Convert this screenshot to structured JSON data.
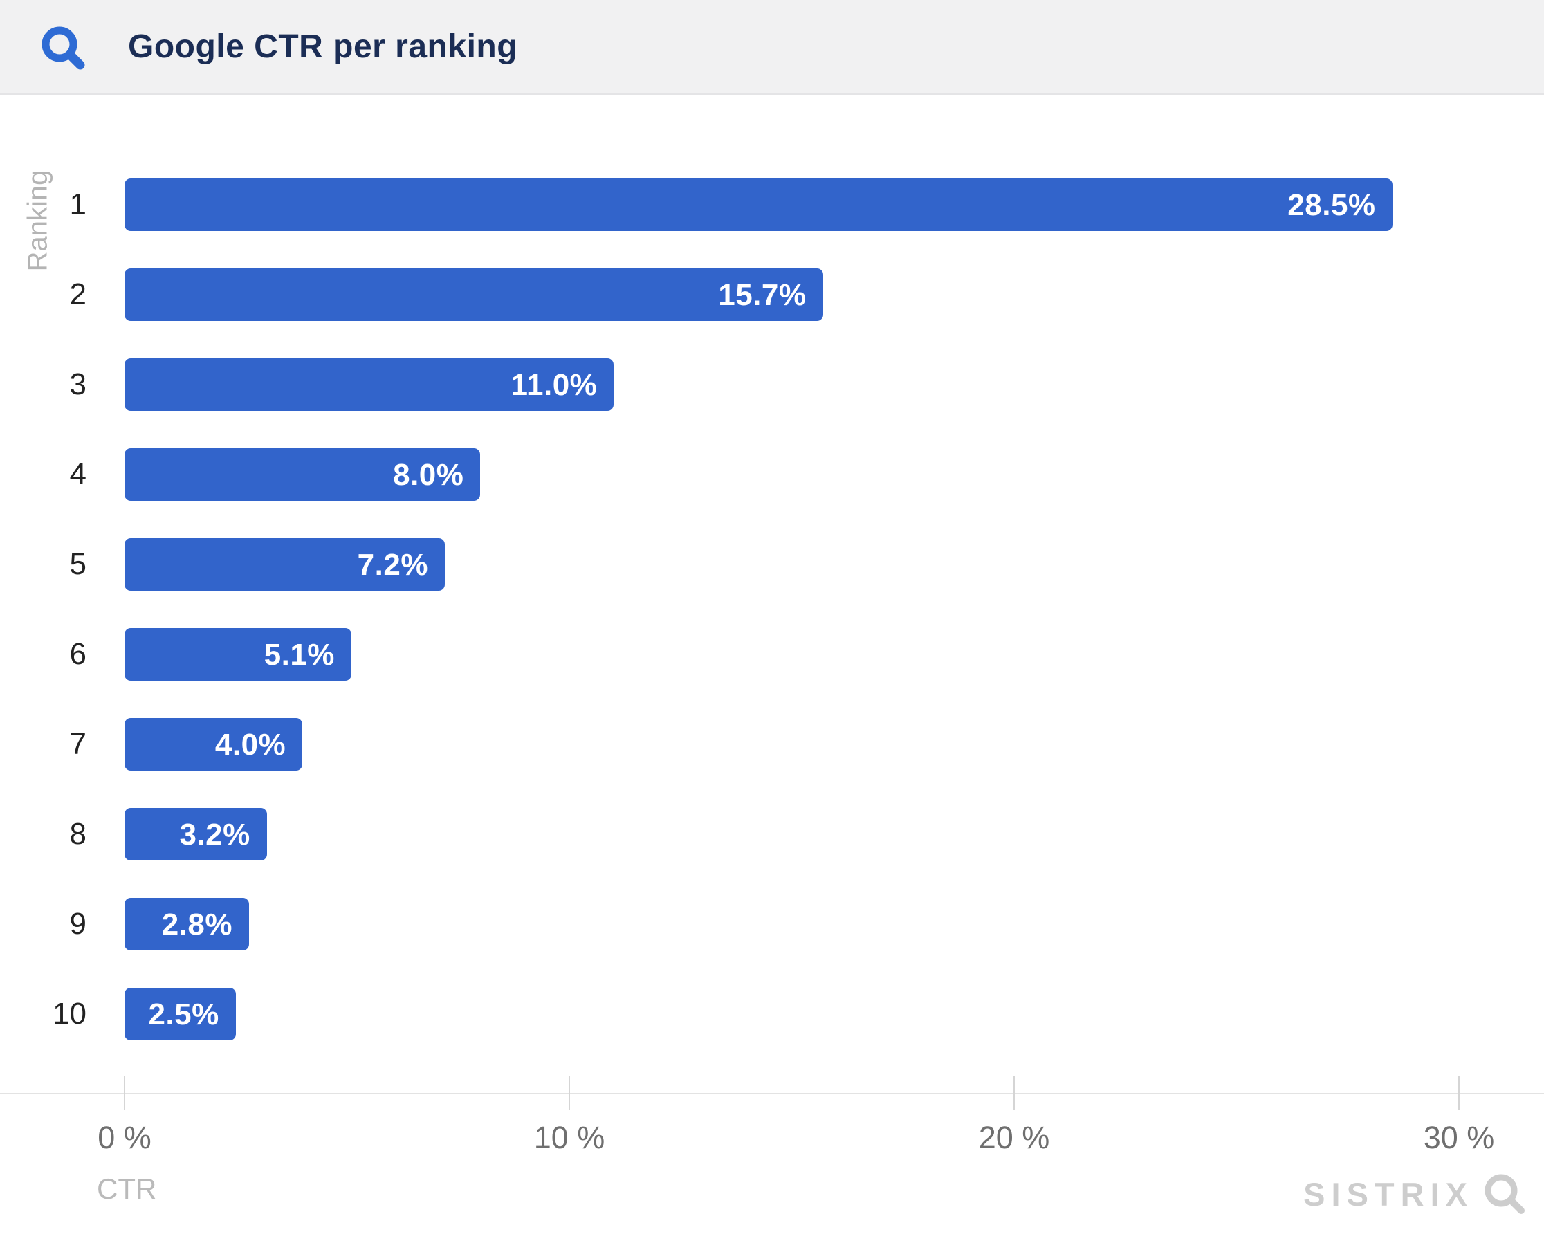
{
  "header": {
    "title": "Google CTR per ranking",
    "icon": "search-icon"
  },
  "chart_data": {
    "type": "bar",
    "orientation": "horizontal",
    "title": "Google CTR per ranking",
    "categories": [
      "1",
      "2",
      "3",
      "4",
      "5",
      "6",
      "7",
      "8",
      "9",
      "10"
    ],
    "values": [
      28.5,
      15.7,
      11.0,
      8.0,
      7.2,
      5.1,
      4.0,
      3.2,
      2.8,
      2.5
    ],
    "value_labels": [
      "28.5%",
      "15.7%",
      "11.0%",
      "8.0%",
      "7.2%",
      "5.1%",
      "4.0%",
      "3.2%",
      "2.8%",
      "2.5%"
    ],
    "xlabel": "CTR",
    "ylabel": "Ranking",
    "x_ticks": [
      "0 %",
      "10 %",
      "20 %",
      "30 %"
    ],
    "x_tick_values": [
      0,
      10,
      20,
      30
    ],
    "xlim": [
      0,
      30
    ],
    "grid": false,
    "legend": "none",
    "bar_color": "#3264cb",
    "value_label_color": "#ffffff"
  },
  "footer": {
    "brand": "SISTRIX",
    "brand_icon": "magnifier-icon"
  },
  "colors": {
    "header_bg": "#f1f1f2",
    "header_border": "#e4e4e6",
    "title": "#1b2d55",
    "header_icon_blue": "#2e6bd4",
    "bar_blue": "#3264cb",
    "axis_line": "#e3e3e3",
    "tick": "#d5d5d5",
    "tick_label": "#6f6f6f",
    "row_label": "#222222",
    "muted_label": "#b4b4b4",
    "brand_gray": "#cdcdcd"
  }
}
